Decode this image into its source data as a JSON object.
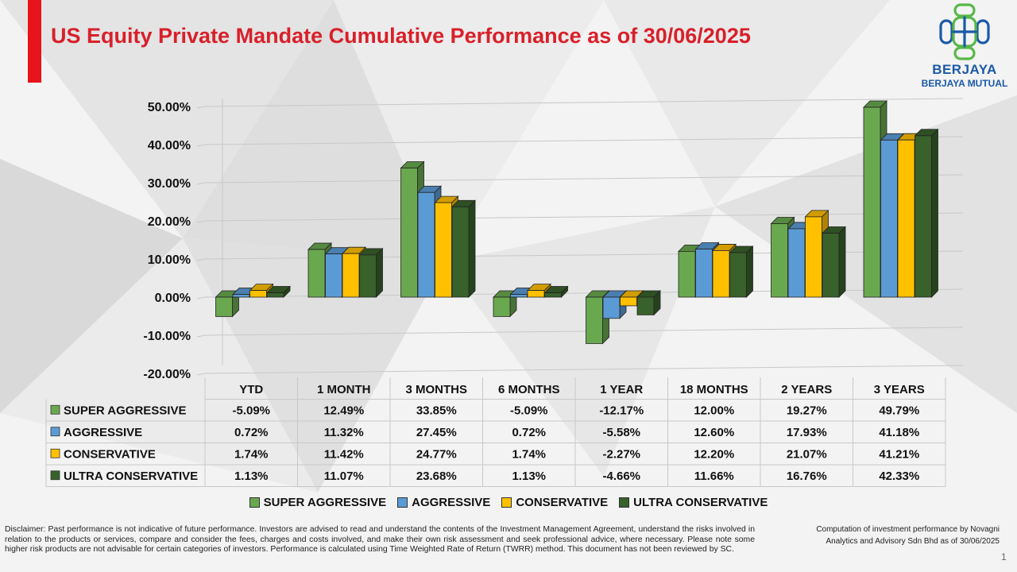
{
  "header": {
    "title": "US Equity Private Mandate Cumulative Performance as of 30/06/2025"
  },
  "logo": {
    "name": "BERJAYA",
    "subtitle": "BERJAYA MUTUAL",
    "color": "#1a5aa6",
    "accent": "#58b848"
  },
  "chart_data": {
    "type": "bar",
    "title": "",
    "xlabel": "",
    "ylabel": "",
    "categories": [
      "YTD",
      "1 MONTH",
      "3 MONTHS",
      "6 MONTHS",
      "1 YEAR",
      "18 MONTHS",
      "2 YEARS",
      "3 YEARS"
    ],
    "ylim": [
      -20,
      50
    ],
    "yticks": [
      50,
      40,
      30,
      20,
      10,
      0,
      -10,
      -20
    ],
    "ytick_labels": [
      "50.00%",
      "40.00%",
      "30.00%",
      "20.00%",
      "10.00%",
      "0.00%",
      "-10.00%",
      "-20.00%"
    ],
    "grid": true,
    "legend": "bottom",
    "series": [
      {
        "name": "SUPER AGGRESSIVE",
        "color": "#6aa84f",
        "values": [
          -5.09,
          12.49,
          33.85,
          -5.09,
          -12.17,
          12.0,
          19.27,
          49.79
        ],
        "labels": [
          "-5.09%",
          "12.49%",
          "33.85%",
          "-5.09%",
          "-12.17%",
          "12.00%",
          "19.27%",
          "49.79%"
        ]
      },
      {
        "name": "AGGRESSIVE",
        "color": "#5b9bd5",
        "values": [
          0.72,
          11.32,
          27.45,
          0.72,
          -5.58,
          12.6,
          17.93,
          41.18
        ],
        "labels": [
          "0.72%",
          "11.32%",
          "27.45%",
          "0.72%",
          "-5.58%",
          "12.60%",
          "17.93%",
          "41.18%"
        ]
      },
      {
        "name": "CONSERVATIVE",
        "color": "#ffc000",
        "values": [
          1.74,
          11.42,
          24.77,
          1.74,
          -2.27,
          12.2,
          21.07,
          41.21
        ],
        "labels": [
          "1.74%",
          "11.42%",
          "24.77%",
          "1.74%",
          "-2.27%",
          "12.20%",
          "21.07%",
          "41.21%"
        ]
      },
      {
        "name": "ULTRA CONSERVATIVE",
        "color": "#38612b",
        "values": [
          1.13,
          11.07,
          23.68,
          1.13,
          -4.66,
          11.66,
          16.76,
          42.33
        ],
        "labels": [
          "1.13%",
          "11.07%",
          "23.68%",
          "1.13%",
          "-4.66%",
          "11.66%",
          "16.76%",
          "42.33%"
        ]
      }
    ]
  },
  "footer": {
    "disclaimer": "Disclaimer: Past performance is not indicative of future performance. Investors are advised to read and understand the contents of the Investment Management Agreement, understand the risks involved in relation to the products or services, compare and consider the fees, charges and costs involved, and make their own risk assessment and seek professional advice, where necessary. Please note some higher risk products are not advisable for certain categories of investors. Performance is calculated using Time Weighted Rate of Return (TWRR) method. This document has not been reviewed by SC.",
    "computation_note": "Computation of investment performance by Novagni Analytics and Advisory Sdn Bhd as of 30/06/2025",
    "page_number": "1"
  }
}
